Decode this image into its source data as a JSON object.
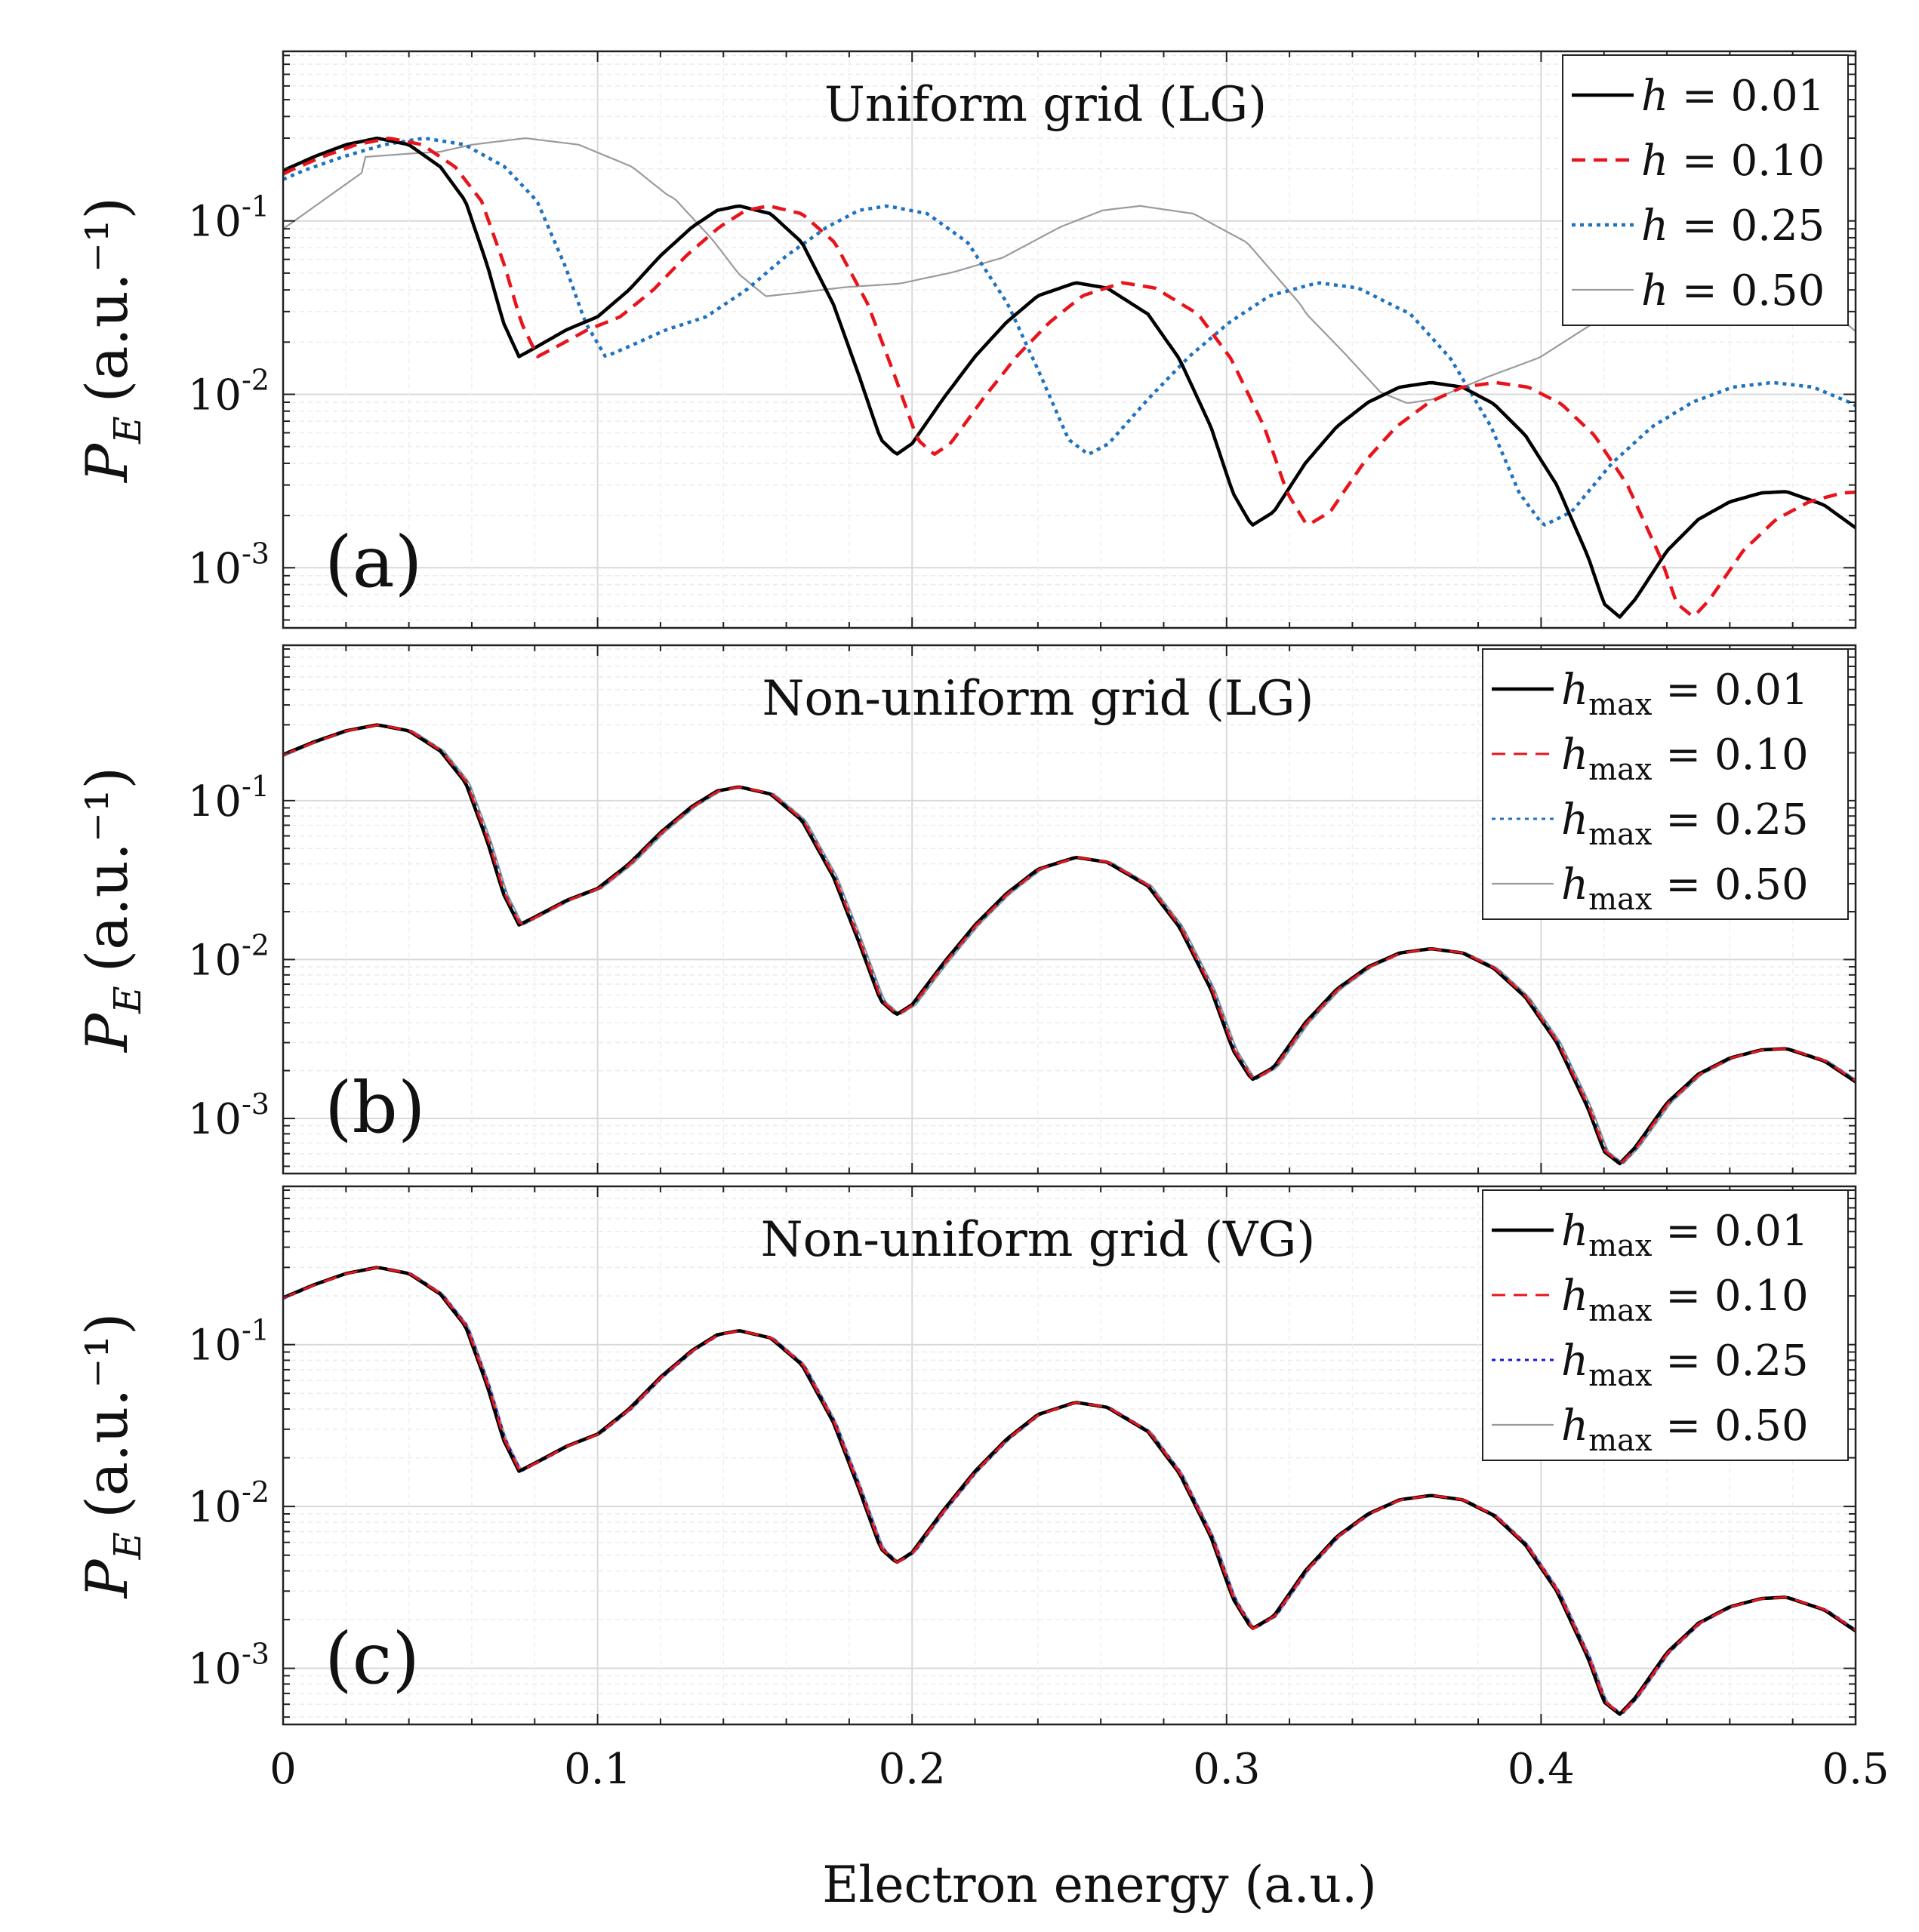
{
  "chart_data": {
    "type": "line",
    "xlabel": "Electron energy (a.u.)",
    "x_ticks": [
      "0",
      "0.1",
      "0.2",
      "0.3",
      "0.4",
      "0.5"
    ],
    "x_tick_values": [
      0,
      0.1,
      0.2,
      0.3,
      0.4,
      0.5
    ],
    "xlim": [
      0,
      0.5
    ],
    "y_scale": "log",
    "ylim": [
      0.00045,
      0.95
    ],
    "ylabel": {
      "symbol": "P",
      "subscript": "E",
      "units": "(a.u.⁻¹)"
    },
    "y_tick_labels": [
      {
        "base": "10",
        "exp": "-1",
        "value": 0.1
      },
      {
        "base": "10",
        "exp": "-2",
        "value": 0.01
      },
      {
        "base": "10",
        "exp": "-3",
        "value": 0.001
      }
    ],
    "grid": "major and minor",
    "panels": [
      {
        "id": "a",
        "title": "Uniform grid (LG)",
        "label": "(a)",
        "legend_position": "top-right",
        "series": [
          {
            "name": "h = 0.01",
            "symbol": "h",
            "value": "0.01",
            "color": "#000000",
            "style": "solid",
            "width": 4.5,
            "shift": 0.0,
            "scale": 1.0
          },
          {
            "name": "h = 0.10",
            "symbol": "h",
            "value": "0.10",
            "color": "#e8141b",
            "style": "dashed",
            "width": 4.5,
            "shift": 0.0022,
            "scale": 1.05
          },
          {
            "name": "h = 0.25",
            "symbol": "h",
            "value": "0.25",
            "color": "#1f72bd",
            "style": "dotted",
            "width": 4.5,
            "shift": 0.0065,
            "scale": 1.28
          },
          {
            "name": "h = 0.50",
            "symbol": "h",
            "value": "0.50",
            "color": "#9b9b9b",
            "style": "solid",
            "width": 2.2,
            "shift": 0.026,
            "scale": 1.7,
            "dip_depth": 0.42
          }
        ]
      },
      {
        "id": "b",
        "title": "Non-uniform grid (LG)",
        "label": "(b)",
        "legend_position": "top-right",
        "series": [
          {
            "name": "h_max = 0.01",
            "symbol": "h",
            "sub": "max",
            "value": "0.01",
            "color": "#000000",
            "style": "solid",
            "width": 4.5,
            "shift": 0.0,
            "scale": 1.0
          },
          {
            "name": "h_max = 0.10",
            "symbol": "h",
            "sub": "max",
            "value": "0.10",
            "color": "#e8141b",
            "style": "dashed",
            "width": 3.0,
            "shift": 0.0004,
            "scale": 1.0
          },
          {
            "name": "h_max = 0.25",
            "symbol": "h",
            "sub": "max",
            "value": "0.25",
            "color": "#1f72bd",
            "style": "dotted",
            "width": 3.0,
            "shift": 0.0008,
            "scale": 1.0
          },
          {
            "name": "h_max = 0.50",
            "symbol": "h",
            "sub": "max",
            "value": "0.50",
            "color": "#9b9b9b",
            "style": "solid",
            "width": 2.2,
            "shift": 0.0012,
            "scale": 1.0
          }
        ]
      },
      {
        "id": "c",
        "title": "Non-uniform grid (VG)",
        "label": "(c)",
        "legend_position": "top-right",
        "series": [
          {
            "name": "h_max = 0.01",
            "symbol": "h",
            "sub": "max",
            "value": "0.01",
            "color": "#000000",
            "style": "solid",
            "width": 4.5,
            "shift": 0.0,
            "scale": 1.0
          },
          {
            "name": "h_max = 0.10",
            "symbol": "h",
            "sub": "max",
            "value": "0.10",
            "color": "#e8141b",
            "style": "dashed",
            "width": 3.0,
            "shift": 0.0003,
            "scale": 1.0
          },
          {
            "name": "h_max = 0.25",
            "symbol": "h",
            "sub": "max",
            "value": "0.25",
            "color": "#1414e0",
            "style": "dotted",
            "width": 3.0,
            "shift": 0.0006,
            "scale": 1.0
          },
          {
            "name": "h_max = 0.50",
            "symbol": "h",
            "sub": "max",
            "value": "0.50",
            "color": "#9b9b9b",
            "style": "solid",
            "width": 2.2,
            "shift": 0.0009,
            "scale": 1.0
          }
        ]
      }
    ],
    "reference_curve": {
      "description": "h = 0.01 photoelectron spectrum, (energy, probability density) pairs",
      "points": [
        [
          0.0,
          0.195
        ],
        [
          0.01,
          0.235
        ],
        [
          0.02,
          0.275
        ],
        [
          0.03,
          0.3
        ],
        [
          0.04,
          0.275
        ],
        [
          0.05,
          0.205
        ],
        [
          0.058,
          0.13
        ],
        [
          0.065,
          0.055
        ],
        [
          0.07,
          0.026
        ],
        [
          0.075,
          0.0165
        ],
        [
          0.08,
          0.0185
        ],
        [
          0.09,
          0.0235
        ],
        [
          0.1,
          0.028
        ],
        [
          0.11,
          0.04
        ],
        [
          0.12,
          0.063
        ],
        [
          0.13,
          0.092
        ],
        [
          0.138,
          0.115
        ],
        [
          0.145,
          0.122
        ],
        [
          0.155,
          0.11
        ],
        [
          0.165,
          0.075
        ],
        [
          0.175,
          0.033
        ],
        [
          0.183,
          0.013
        ],
        [
          0.19,
          0.0055
        ],
        [
          0.195,
          0.0045
        ],
        [
          0.2,
          0.0052
        ],
        [
          0.21,
          0.0095
        ],
        [
          0.22,
          0.0165
        ],
        [
          0.23,
          0.026
        ],
        [
          0.24,
          0.037
        ],
        [
          0.252,
          0.044
        ],
        [
          0.262,
          0.041
        ],
        [
          0.275,
          0.029
        ],
        [
          0.285,
          0.016
        ],
        [
          0.295,
          0.0065
        ],
        [
          0.302,
          0.0027
        ],
        [
          0.308,
          0.00175
        ],
        [
          0.315,
          0.0021
        ],
        [
          0.325,
          0.004
        ],
        [
          0.335,
          0.0065
        ],
        [
          0.345,
          0.009
        ],
        [
          0.355,
          0.011
        ],
        [
          0.365,
          0.0117
        ],
        [
          0.375,
          0.011
        ],
        [
          0.385,
          0.0088
        ],
        [
          0.395,
          0.0058
        ],
        [
          0.405,
          0.003
        ],
        [
          0.415,
          0.00115
        ],
        [
          0.42,
          0.00062
        ],
        [
          0.425,
          0.00052
        ],
        [
          0.43,
          0.00066
        ],
        [
          0.44,
          0.00125
        ],
        [
          0.45,
          0.0019
        ],
        [
          0.46,
          0.0024
        ],
        [
          0.47,
          0.0027
        ],
        [
          0.478,
          0.00275
        ],
        [
          0.49,
          0.0023
        ],
        [
          0.5,
          0.0017
        ]
      ]
    }
  }
}
